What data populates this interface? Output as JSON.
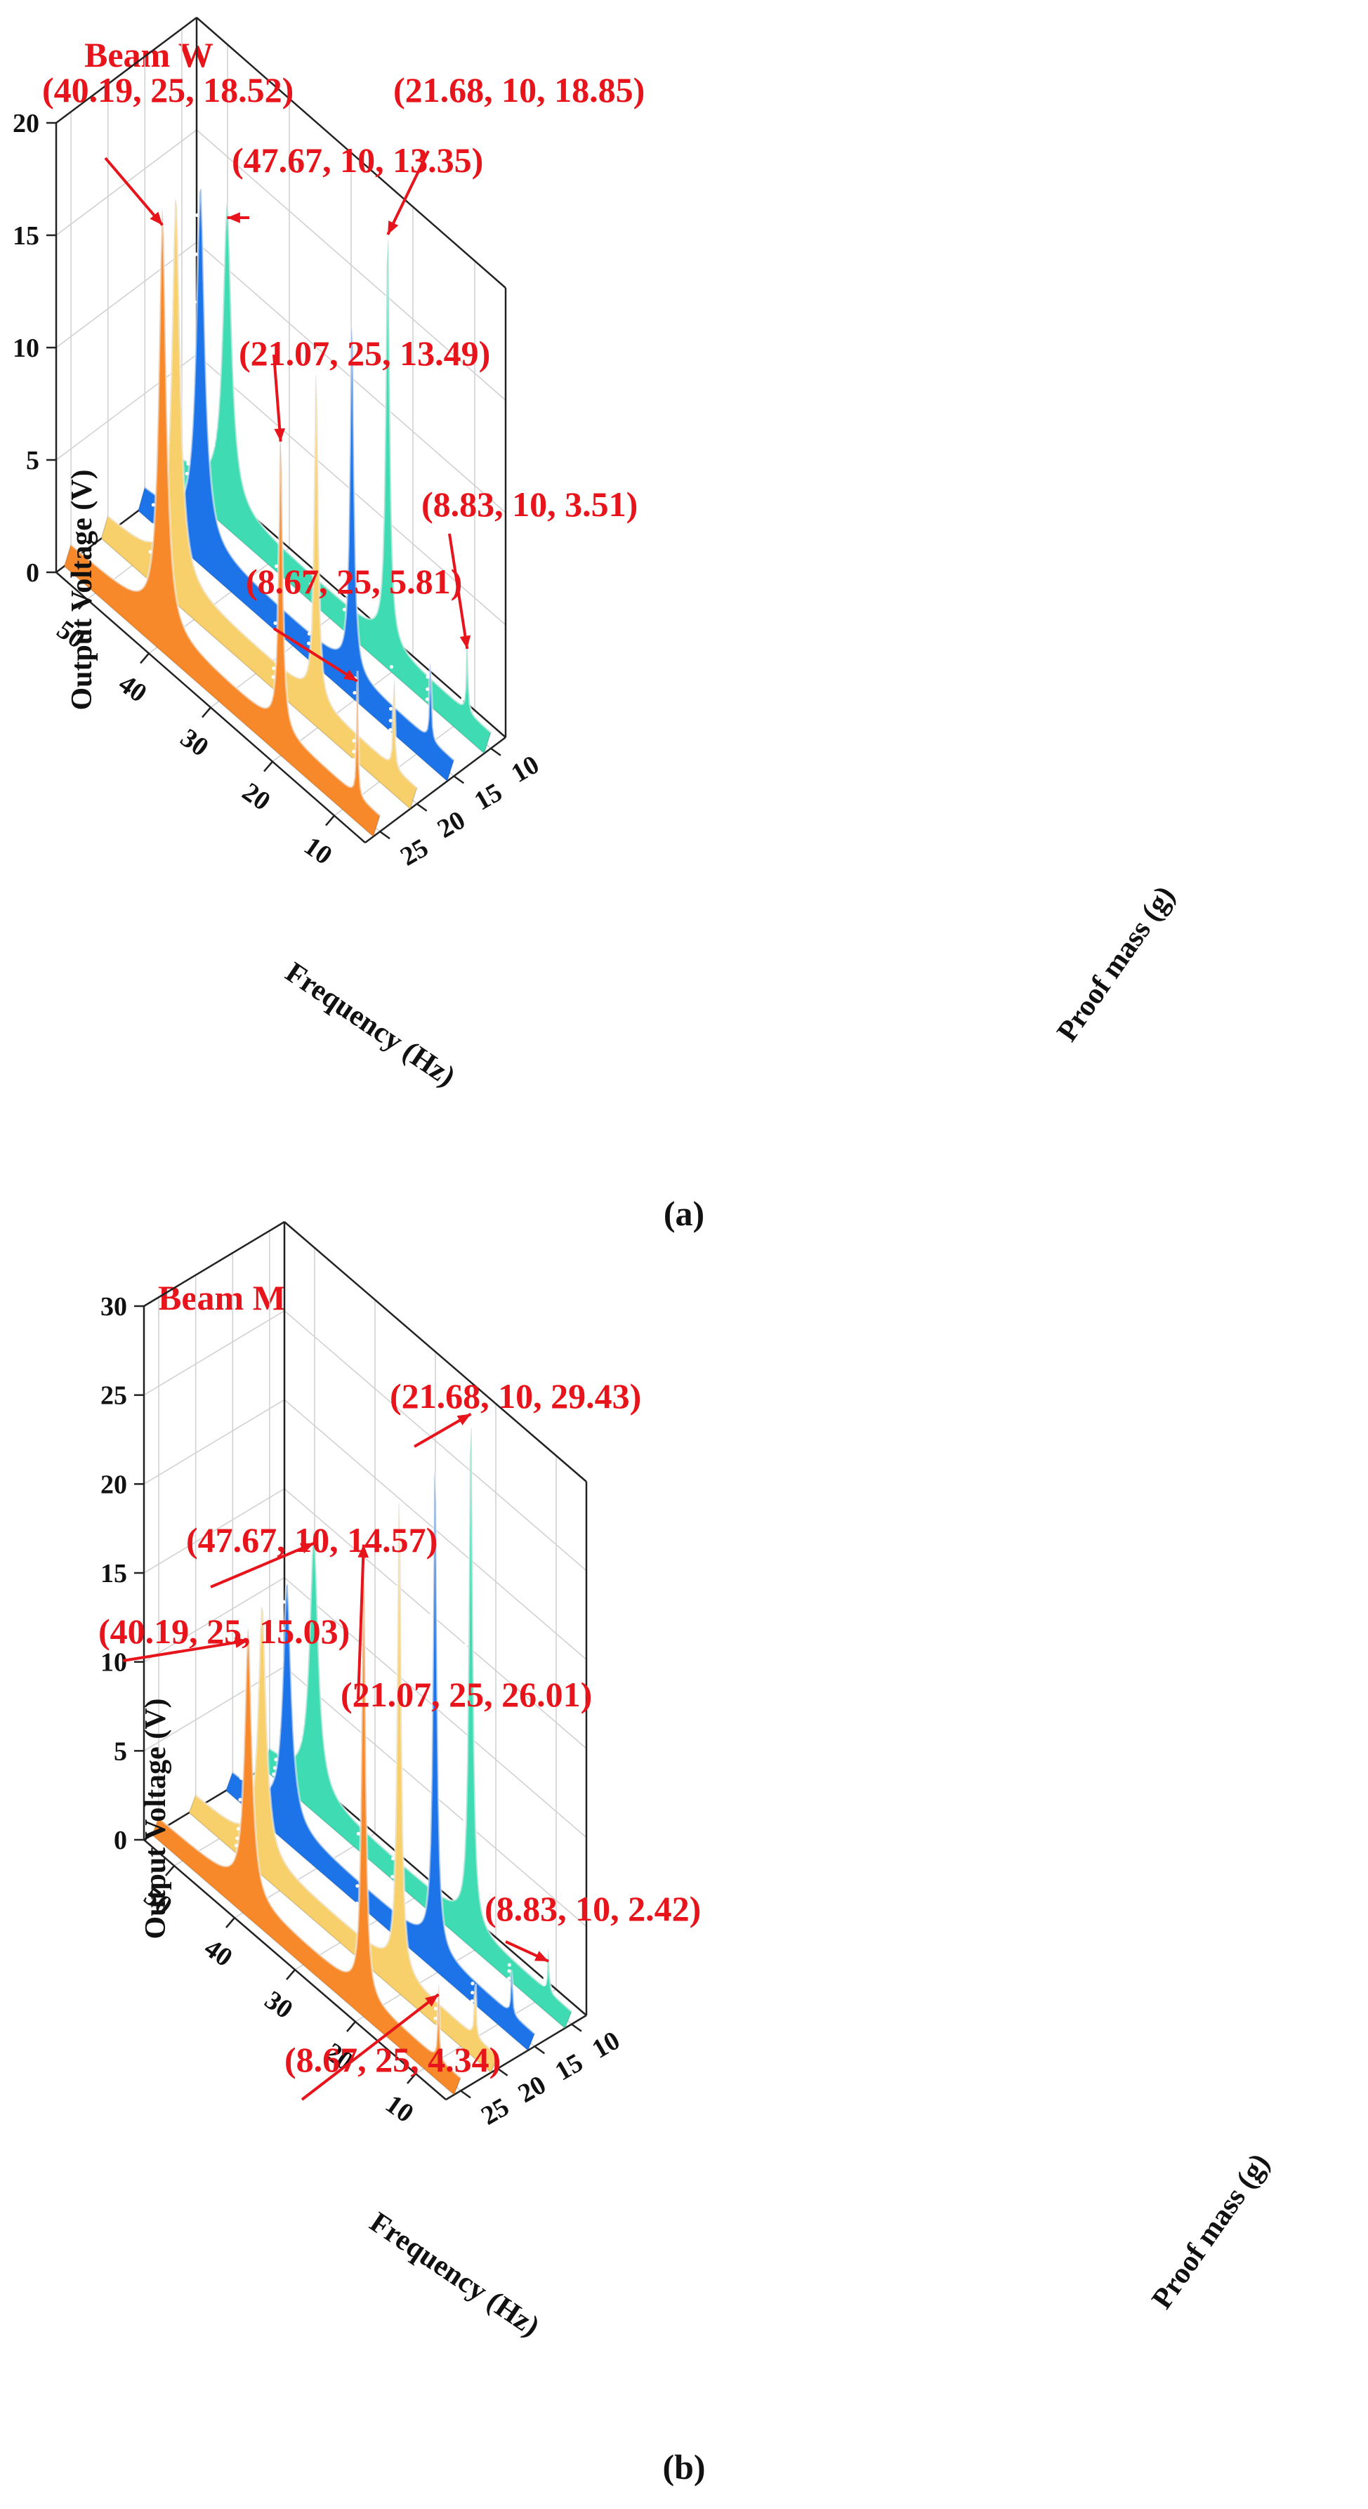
{
  "figure": {
    "caption_a": "(a)",
    "caption_b": "(b)"
  },
  "colors": {
    "annotation": "#e8141b",
    "series_25g": "#f7892a",
    "series_20g": "#f7cf6b",
    "series_15g": "#1c74e8",
    "series_10g": "#3fdcb3",
    "grid": "#cfcfcf"
  },
  "chart_data": [
    {
      "type": "3d-waterfall-line",
      "title": "Beam W",
      "xlabel": "Frequency (Hz)",
      "ylabel": "Proof mass (g)",
      "zlabel": "Output Voltage (V)",
      "xlim": [
        5,
        55
      ],
      "ylim": [
        8,
        27
      ],
      "zlim": [
        0,
        20
      ],
      "x_ticks": [
        "50",
        "40",
        "30",
        "20",
        "10"
      ],
      "y_ticks": [
        "10",
        "15",
        "20",
        "25"
      ],
      "z_ticks": [
        "0",
        "5",
        "10",
        "15",
        "20"
      ],
      "series": [
        {
          "name": "25",
          "mass": 25,
          "peaks": [
            {
              "f": 40.19,
              "v": 18.52
            },
            {
              "f": 21.07,
              "v": 13.49
            },
            {
              "f": 8.67,
              "v": 5.81
            }
          ]
        },
        {
          "name": "20",
          "mass": 20,
          "peaks": [
            {
              "f": 44.0,
              "v": 17.0
            },
            {
              "f": 21.3,
              "v": 14.8
            },
            {
              "f": 8.72,
              "v": 5.0
            }
          ]
        },
        {
          "name": "15",
          "mass": 15,
          "peaks": [
            {
              "f": 46.0,
              "v": 15.8
            },
            {
              "f": 21.5,
              "v": 16.2
            },
            {
              "f": 8.78,
              "v": 4.3
            }
          ]
        },
        {
          "name": "10",
          "mass": 10,
          "peaks": [
            {
              "f": 47.67,
              "v": 13.35
            },
            {
              "f": 21.68,
              "v": 18.85
            },
            {
              "f": 8.83,
              "v": 3.51
            }
          ]
        }
      ],
      "annotations": [
        {
          "label": "(40.19, 25, 18.52)",
          "f": 40.19,
          "mass": 25,
          "v": 18.52
        },
        {
          "label": "(47.67, 10, 13.35)",
          "f": 47.67,
          "mass": 10,
          "v": 13.35
        },
        {
          "label": "(21.68, 10, 18.85)",
          "f": 21.68,
          "mass": 10,
          "v": 18.85
        },
        {
          "label": "(21.07, 25, 13.49)",
          "f": 21.07,
          "mass": 25,
          "v": 13.49
        },
        {
          "label": "(8.83, 10, 3.51)",
          "f": 8.83,
          "mass": 10,
          "v": 3.51
        },
        {
          "label": "(8.67, 25, 5.81)",
          "f": 8.67,
          "mass": 25,
          "v": 5.81
        }
      ]
    },
    {
      "type": "3d-waterfall-line",
      "title": "Beam M",
      "xlabel": "Frequency (Hz)",
      "ylabel": "Proof mass (g)",
      "zlabel": "Output Voltage (V)",
      "xlim": [
        5,
        55
      ],
      "ylim": [
        8,
        27
      ],
      "zlim": [
        0,
        30
      ],
      "x_ticks": [
        "50",
        "40",
        "30",
        "20",
        "10"
      ],
      "y_ticks": [
        "10",
        "15",
        "20",
        "25"
      ],
      "z_ticks": [
        "0",
        "5",
        "10",
        "15",
        "20",
        "25",
        "30"
      ],
      "series": [
        {
          "name": "25",
          "mass": 25,
          "peaks": [
            {
              "f": 40.19,
              "v": 15.03
            },
            {
              "f": 21.07,
              "v": 26.01
            },
            {
              "f": 8.67,
              "v": 4.34
            }
          ]
        },
        {
          "name": "20",
          "mass": 20,
          "peaks": [
            {
              "f": 44.0,
              "v": 14.0
            },
            {
              "f": 21.3,
              "v": 27.0
            },
            {
              "f": 8.72,
              "v": 3.8
            }
          ]
        },
        {
          "name": "15",
          "mass": 15,
          "peaks": [
            {
              "f": 46.0,
              "v": 13.5
            },
            {
              "f": 21.5,
              "v": 28.2
            },
            {
              "f": 8.78,
              "v": 3.1
            }
          ]
        },
        {
          "name": "10",
          "mass": 10,
          "peaks": [
            {
              "f": 47.67,
              "v": 14.57
            },
            {
              "f": 21.68,
              "v": 29.43
            },
            {
              "f": 8.83,
              "v": 2.42
            }
          ]
        }
      ],
      "annotations": [
        {
          "label": "(21.68, 10, 29.43)",
          "f": 21.68,
          "mass": 10,
          "v": 29.43
        },
        {
          "label": "(47.67, 10, 14.57)",
          "f": 47.67,
          "mass": 10,
          "v": 14.57
        },
        {
          "label": "(40.19, 25, 15.03)",
          "f": 40.19,
          "mass": 25,
          "v": 15.03
        },
        {
          "label": "(21.07, 25, 26.01)",
          "f": 21.07,
          "mass": 25,
          "v": 26.01
        },
        {
          "label": "(8.83, 10, 2.42)",
          "f": 8.83,
          "mass": 10,
          "v": 2.42
        },
        {
          "label": "(8.67, 25, 4.34)",
          "f": 8.67,
          "mass": 25,
          "v": 4.34
        }
      ]
    }
  ]
}
